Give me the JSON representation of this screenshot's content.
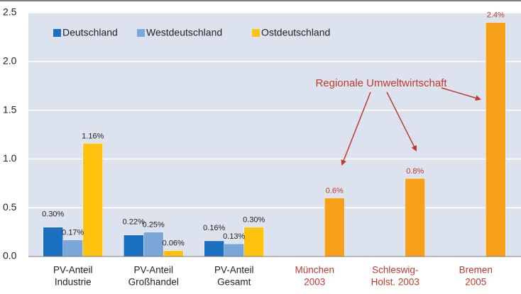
{
  "chart_data": {
    "type": "bar",
    "categories": [
      [
        "PV-Anteil",
        "Industrie"
      ],
      [
        "PV-Anteil",
        "Großhandel"
      ],
      [
        "PV-Anteil",
        "Gesamt"
      ],
      [
        "München",
        "2003"
      ],
      [
        "Schleswig-",
        "Holst. 2003"
      ],
      [
        "Bremen",
        "2005"
      ]
    ],
    "category_colors": [
      "#222222",
      "#222222",
      "#222222",
      "#c0392b",
      "#c0392b",
      "#c0392b"
    ],
    "series": [
      {
        "name": "Deutschland",
        "color": "#1a6fc0",
        "values": [
          0.3,
          0.22,
          0.16,
          null,
          null,
          null
        ],
        "value_labels": [
          "0.30%",
          "0.22%",
          "0.16%",
          null,
          null,
          null
        ]
      },
      {
        "name": "Westdeutschland",
        "color": "#7aa7d8",
        "values": [
          0.17,
          0.25,
          0.13,
          null,
          null,
          null
        ],
        "value_labels": [
          "0.17%",
          "0.25%",
          "0.13%",
          null,
          null,
          null
        ]
      },
      {
        "name": "Ostdeutschland",
        "color": "#ffc20e",
        "colors": [
          "#ffc20e",
          "#ffc20e",
          "#ffc20e",
          "#f7a11a",
          "#f7a11a",
          "#f7a11a"
        ],
        "values": [
          1.16,
          0.06,
          0.3,
          0.6,
          0.8,
          2.4
        ],
        "value_labels": [
          "1.16%",
          "0.06%",
          "0.30%",
          "0.6%",
          "0.8%",
          "2.4%"
        ]
      }
    ],
    "ylim": [
      0,
      2.5
    ],
    "yticks": [
      {
        "value": 0,
        "label": "0.0"
      },
      0.5,
      {
        "value": 1,
        "label": "1.0"
      },
      1.5,
      {
        "value": 2,
        "label": "2.0"
      },
      2.5
    ],
    "grid": true,
    "legend": "top-left",
    "annotation": "Regionale Umweltwirtschaft"
  }
}
